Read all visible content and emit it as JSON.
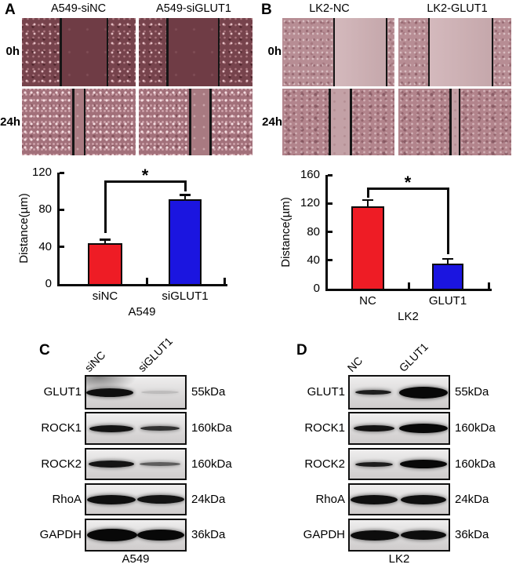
{
  "panels": {
    "A": {
      "letter": "A",
      "column_titles": [
        "A549-siNC",
        "A549-siGLUT1"
      ],
      "row_labels": [
        "0h",
        "24h"
      ],
      "micrographs": [
        {
          "row": "0h",
          "col": 0,
          "gap_start": 0.34,
          "gap_end": 0.75,
          "style": "a0"
        },
        {
          "row": "0h",
          "col": 1,
          "gap_start": 0.25,
          "gap_end": 0.7,
          "style": "a0"
        },
        {
          "row": "24h",
          "col": 0,
          "gap_start": 0.45,
          "gap_end": 0.55,
          "style": "a24"
        },
        {
          "row": "24h",
          "col": 1,
          "gap_start": 0.45,
          "gap_end": 0.63,
          "style": "a24"
        }
      ]
    },
    "B": {
      "letter": "B",
      "column_titles": [
        "LK2-NC",
        "LK2-GLUT1"
      ],
      "row_labels": [
        "0h",
        "24h"
      ],
      "micrographs": [
        {
          "row": "0h",
          "col": 0,
          "gap_start": 0.46,
          "gap_end": 0.93,
          "style": "b0"
        },
        {
          "row": "0h",
          "col": 1,
          "gap_start": 0.27,
          "gap_end": 0.83,
          "style": "b0"
        },
        {
          "row": "24h",
          "col": 0,
          "gap_start": 0.42,
          "gap_end": 0.61,
          "style": "b24"
        },
        {
          "row": "24h",
          "col": 1,
          "gap_start": 0.46,
          "gap_end": 0.54,
          "style": "b24"
        }
      ]
    },
    "C": {
      "letter": "C",
      "lane_labels": [
        "siNC",
        "siGLUT1"
      ],
      "cell_line": "A549",
      "rows": [
        {
          "protein": "GLUT1",
          "weight": "55kDa",
          "smudge": true,
          "bands": [
            [
              30,
              60,
              11,
              0.97
            ],
            [
              94,
              48,
              4,
              0.15
            ]
          ]
        },
        {
          "protein": "ROCK1",
          "weight": "160kDa",
          "smudge": false,
          "bands": [
            [
              32,
              56,
              9,
              0.95
            ],
            [
              94,
              50,
              6,
              0.8
            ]
          ]
        },
        {
          "protein": "ROCK2",
          "weight": "160kDa",
          "smudge": false,
          "bands": [
            [
              32,
              58,
              9,
              0.95
            ],
            [
              94,
              52,
              5,
              0.6
            ]
          ]
        },
        {
          "protein": "RhoA",
          "weight": "24kDa",
          "smudge": false,
          "bands": [
            [
              32,
              62,
              12,
              0.97
            ],
            [
              95,
              60,
              11,
              0.95
            ]
          ]
        },
        {
          "protein": "GAPDH",
          "weight": "36kDa",
          "smudge": false,
          "bands": [
            [
              33,
              64,
              16,
              1
            ],
            [
              95,
              60,
              14,
              1
            ]
          ]
        }
      ]
    },
    "D": {
      "letter": "D",
      "lane_labels": [
        "NC",
        "GLUT1"
      ],
      "cell_line": "LK2",
      "rows": [
        {
          "protein": "GLUT1",
          "weight": "55kDa",
          "smudge": false,
          "bands": [
            [
              30,
              46,
              6,
              0.9
            ],
            [
              94,
              62,
              15,
              1
            ]
          ]
        },
        {
          "protein": "ROCK1",
          "weight": "160kDa",
          "smudge": false,
          "bands": [
            [
              31,
              52,
              8,
              0.95
            ],
            [
              94,
              62,
              12,
              1
            ]
          ]
        },
        {
          "protein": "ROCK2",
          "weight": "160kDa",
          "smudge": false,
          "bands": [
            [
              31,
              48,
              6,
              0.9
            ],
            [
              94,
              60,
              11,
              1
            ]
          ]
        },
        {
          "protein": "RhoA",
          "weight": "24kDa",
          "smudge": false,
          "bands": [
            [
              31,
              60,
              12,
              0.97
            ],
            [
              94,
              58,
              12,
              0.97
            ]
          ]
        },
        {
          "protein": "GAPDH",
          "weight": "36kDa",
          "smudge": false,
          "bands": [
            [
              32,
              62,
              13,
              0.98
            ],
            [
              94,
              58,
              12,
              0.98
            ]
          ]
        }
      ]
    }
  },
  "chart_data": [
    {
      "type": "bar",
      "panel": "A",
      "categories": [
        "siNC",
        "siGLUT1"
      ],
      "values": [
        44,
        91
      ],
      "errors": [
        4,
        5
      ],
      "bar_colors": [
        "#ee1c25",
        "#1b15e0"
      ],
      "title": "",
      "xlabel": "A549",
      "ylabel": "Distance(µm)",
      "ylim": [
        0,
        120
      ],
      "yticks": [
        0,
        40,
        80,
        120
      ],
      "significance": "*",
      "legend": "none",
      "grid": false
    },
    {
      "type": "bar",
      "panel": "B",
      "categories": [
        "NC",
        "GLUT1"
      ],
      "values": [
        116,
        35
      ],
      "errors": [
        9,
        7
      ],
      "bar_colors": [
        "#ee1c25",
        "#1b15e0"
      ],
      "title": "",
      "xlabel": "LK2",
      "ylabel": "Distance(µm)",
      "ylim": [
        0,
        160
      ],
      "yticks": [
        0,
        40,
        80,
        120,
        160
      ],
      "significance": "*",
      "legend": "none",
      "grid": false
    }
  ]
}
